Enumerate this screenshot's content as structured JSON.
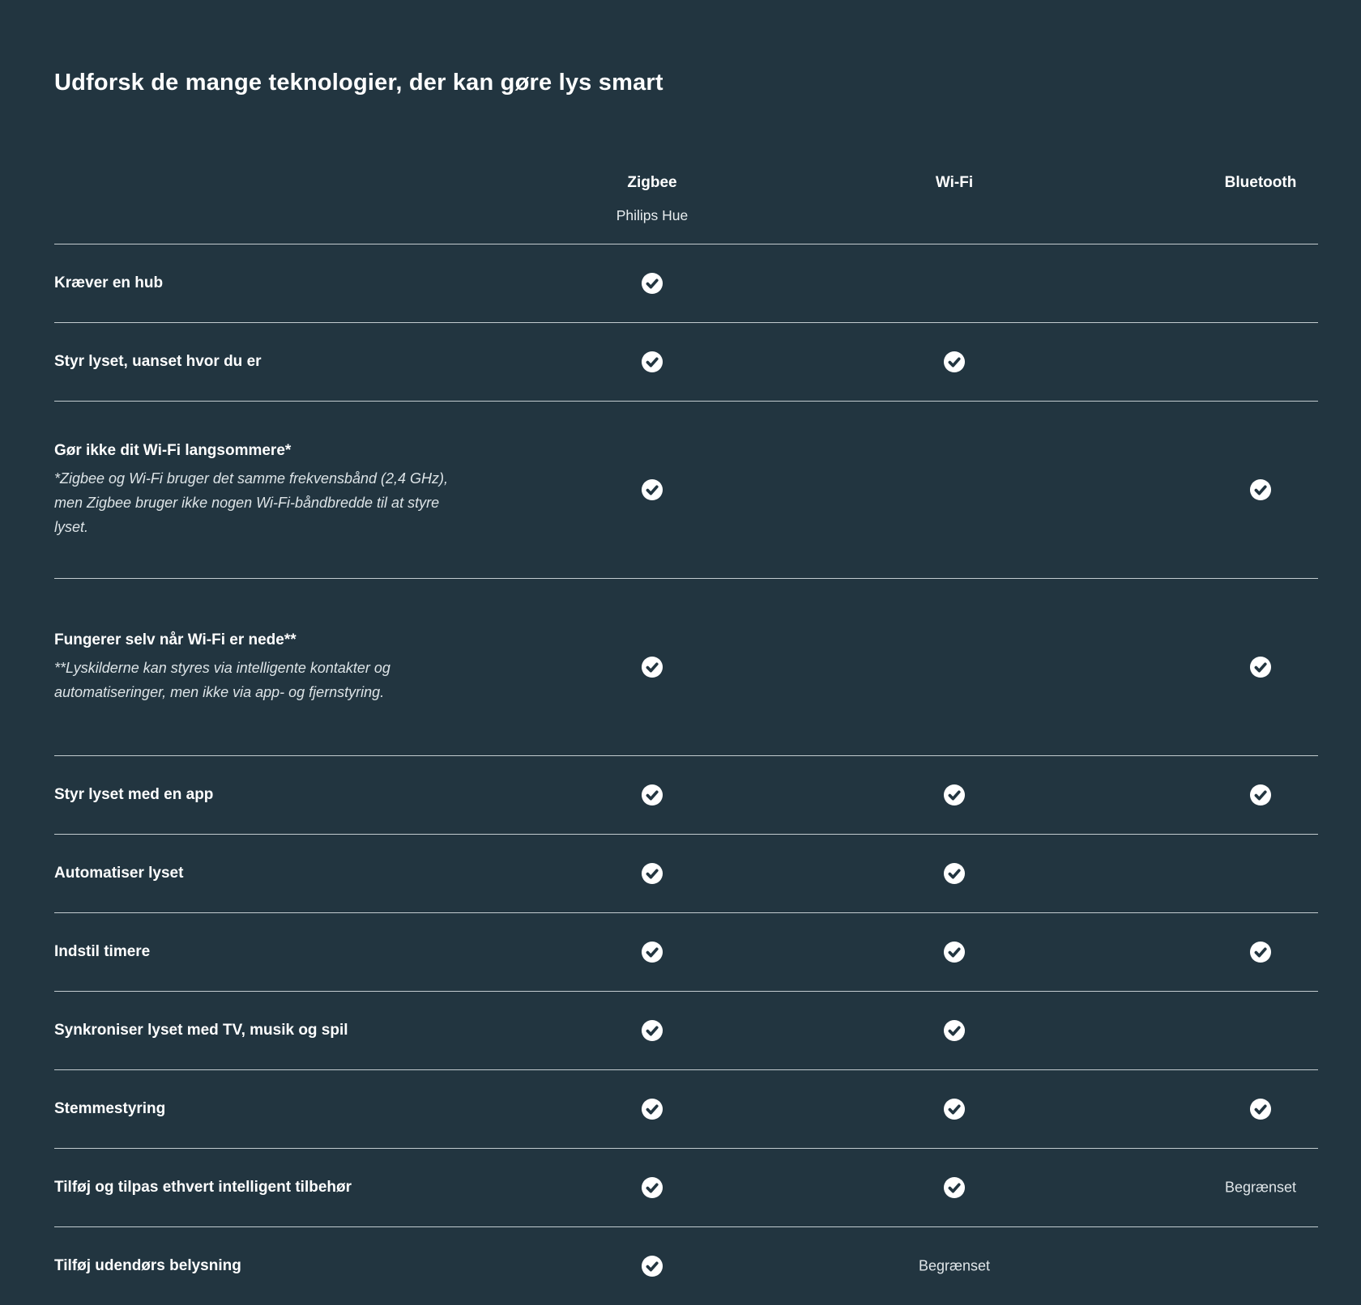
{
  "title": "Udforsk de mange teknologier, der kan gøre lys smart",
  "columns": [
    {
      "label": "Zigbee",
      "sublabel": "Philips Hue"
    },
    {
      "label": "Wi-Fi",
      "sublabel": ""
    },
    {
      "label": "Bluetooth",
      "sublabel": ""
    }
  ],
  "limited_label": "Begrænset",
  "rows": [
    {
      "label": "Kræver en hub",
      "note": "",
      "zigbee": "check",
      "wifi": "none",
      "bluetooth": "none"
    },
    {
      "label": "Styr lyset, uanset hvor du er",
      "note": "",
      "zigbee": "check",
      "wifi": "check",
      "bluetooth": "none"
    },
    {
      "label": "Gør ikke dit Wi-Fi langsommere*",
      "note": "*Zigbee og Wi-Fi bruger det samme frekvensbånd (2,4 GHz), men Zigbee bruger ikke nogen Wi-Fi-båndbredde til at styre lyset.",
      "zigbee": "check",
      "wifi": "none",
      "bluetooth": "check"
    },
    {
      "label": "Fungerer selv når Wi-Fi er nede**",
      "note": "**Lyskilderne kan styres via intelligente kontakter og automatiseringer, men ikke via app- og fjernstyring.",
      "zigbee": "check",
      "wifi": "none",
      "bluetooth": "check"
    },
    {
      "label": "Styr lyset med en app",
      "note": "",
      "zigbee": "check",
      "wifi": "check",
      "bluetooth": "check"
    },
    {
      "label": "Automatiser lyset",
      "note": "",
      "zigbee": "check",
      "wifi": "check",
      "bluetooth": "none"
    },
    {
      "label": "Indstil timere",
      "note": "",
      "zigbee": "check",
      "wifi": "check",
      "bluetooth": "check"
    },
    {
      "label": "Synkroniser lyset med TV, musik og spil",
      "note": "",
      "zigbee": "check",
      "wifi": "check",
      "bluetooth": "none"
    },
    {
      "label": "Stemmestyring",
      "note": "",
      "zigbee": "check",
      "wifi": "check",
      "bluetooth": "check"
    },
    {
      "label": "Tilføj og tilpas ethvert intelligent tilbehør",
      "note": "",
      "zigbee": "check",
      "wifi": "check",
      "bluetooth": "limited"
    },
    {
      "label": "Tilføj udendørs belysning",
      "note": "",
      "zigbee": "check",
      "wifi": "limited",
      "bluetooth": "none"
    }
  ],
  "icons": {
    "check_icon": "check-icon"
  },
  "colors": {
    "background": "#223540",
    "text": "#ffffff",
    "note_text": "#dde4e7",
    "divider": "#dfe6ea",
    "check_circle": "#ffffff",
    "check_mark": "#223540"
  }
}
